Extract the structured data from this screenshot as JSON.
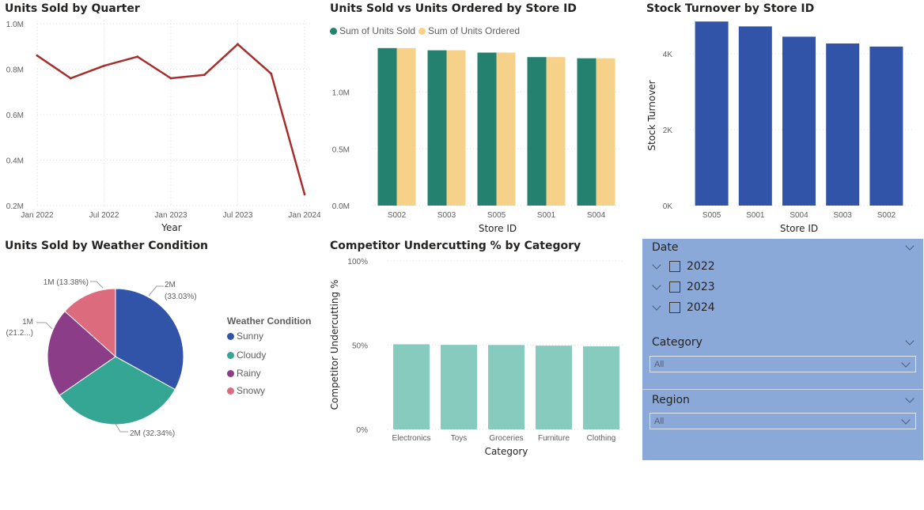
{
  "colors": {
    "line": "#a52f2c",
    "units_sold": "#24806f",
    "units_ordered": "#f5d18a",
    "turnover": "#3154a8",
    "undercut": "#87cbbf",
    "sunny": "#3154a8",
    "cloudy": "#35a594",
    "rainy": "#8b3d87",
    "snowy": "#dc6b7d",
    "slicer_bg": "#8aa8d8",
    "grid": "#e1dfdd"
  },
  "charts": {
    "line": {
      "title": "Units Sold by Quarter",
      "x_label": "Year",
      "y_ticks": [
        "1.0M",
        "0.8M",
        "0.6M",
        "0.4M",
        "0.2M"
      ],
      "x_ticks": [
        "Jan 2022",
        "Jul 2022",
        "Jan 2023",
        "Jul 2023",
        "Jan 2024"
      ]
    },
    "clustered": {
      "title": "Units Sold vs Units Ordered by Store ID",
      "x_label": "Store ID",
      "y_ticks": [
        "1.0M",
        "0.5M",
        "0.0M"
      ],
      "legend": [
        "Sum of Units Sold",
        "Sum of Units Ordered"
      ]
    },
    "turnover": {
      "title": "Stock Turnover by Store ID",
      "x_label": "Store ID",
      "y_label": "Stock Turnover",
      "y_ticks": [
        "4K",
        "2K",
        "0K"
      ]
    },
    "pie": {
      "title": "Units Sold by Weather Condition",
      "legend_title": "Weather Condition",
      "labels": {
        "sunny_a": "2M",
        "sunny_b": "(33.03%)",
        "cloudy": "2M (32.34%)",
        "rainy_a": "1M",
        "rainy_b": "(21.2...)",
        "snowy": "1M (13.38%)"
      }
    },
    "undercut": {
      "title": "Competitor Undercutting % by Category",
      "x_label": "Category",
      "y_label": "Competitor Undercutting %",
      "y_ticks": [
        "100%",
        "50%",
        "0%"
      ]
    }
  },
  "chart_data": [
    {
      "type": "line",
      "title": "Units Sold by Quarter",
      "xlabel": "Year",
      "ylabel": "",
      "x": [
        "2022 Q1",
        "2022 Q2",
        "2022 Q3",
        "2022 Q4",
        "2023 Q1",
        "2023 Q2",
        "2023 Q3",
        "2023 Q4",
        "2024 Q1"
      ],
      "values": [
        0.86,
        0.76,
        0.815,
        0.855,
        0.76,
        0.775,
        0.91,
        0.78,
        0.25
      ],
      "unit": "M",
      "ylim": [
        0.2,
        1.0
      ],
      "grid": true
    },
    {
      "type": "bar",
      "title": "Units Sold vs Units Ordered by Store ID",
      "xlabel": "Store ID",
      "ylabel": "",
      "categories": [
        "S002",
        "S003",
        "S005",
        "S001",
        "S004"
      ],
      "series": [
        {
          "name": "Sum of Units Sold",
          "values": [
            1.39,
            1.37,
            1.35,
            1.31,
            1.3
          ]
        },
        {
          "name": "Sum of Units Ordered",
          "values": [
            1.39,
            1.37,
            1.35,
            1.31,
            1.3
          ]
        }
      ],
      "unit": "M",
      "ylim": [
        0,
        1.5
      ],
      "legend": "top-left"
    },
    {
      "type": "bar",
      "title": "Stock Turnover by Store ID",
      "xlabel": "Store ID",
      "ylabel": "Stock Turnover",
      "categories": [
        "S005",
        "S001",
        "S004",
        "S003",
        "S002"
      ],
      "values": [
        4850,
        4720,
        4450,
        4270,
        4190
      ],
      "ylim": [
        0,
        5000
      ]
    },
    {
      "type": "pie",
      "title": "Units Sold by Weather Condition",
      "categories": [
        "Sunny",
        "Cloudy",
        "Rainy",
        "Snowy"
      ],
      "values": [
        33.03,
        32.34,
        21.25,
        13.38
      ],
      "labels": [
        "2M (33.03%)",
        "2M (32.34%)",
        "1M (21.2...)",
        "1M (13.38%)"
      ],
      "legend": "right"
    },
    {
      "type": "bar",
      "title": "Competitor Undercutting % by Category",
      "xlabel": "Category",
      "ylabel": "Competitor Undercutting %",
      "categories": [
        "Electronics",
        "Toys",
        "Groceries",
        "Furniture",
        "Clothing"
      ],
      "values": [
        50.5,
        50.2,
        50.1,
        49.7,
        49.3
      ],
      "ylim": [
        0,
        100
      ]
    }
  ],
  "slicers": {
    "date": {
      "header": "Date",
      "items": [
        "2022",
        "2023",
        "2024"
      ]
    },
    "category": {
      "header": "Category",
      "value": "All"
    },
    "region": {
      "header": "Region",
      "value": "All"
    }
  }
}
